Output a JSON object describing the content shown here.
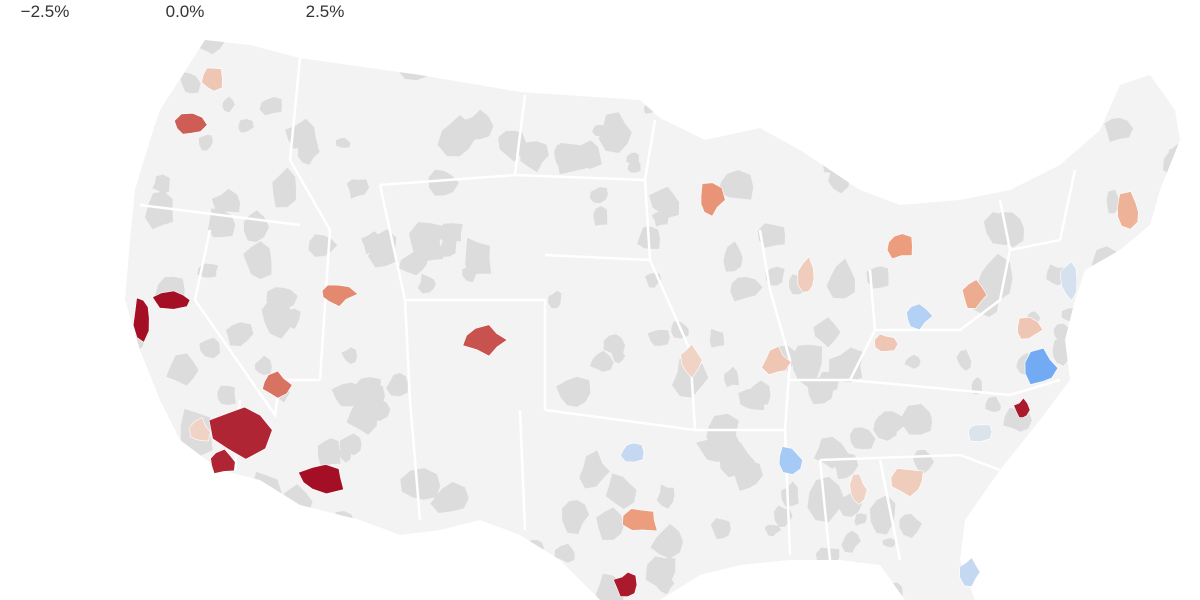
{
  "legend": {
    "ticks": [
      {
        "value": -2.5,
        "label": "−2.5%"
      },
      {
        "value": 0,
        "label": "0.0%"
      },
      {
        "value": 2.5,
        "label": "2.5%"
      }
    ],
    "colors": [
      "#2b7df0",
      "#aacdf6",
      "#f2eee8",
      "#ec9a7a",
      "#a50f25"
    ]
  },
  "metros": {
    "values": [
      0.6,
      1.8,
      2.5,
      2.5,
      2.3,
      2.3,
      1.6,
      2.5,
      1.4,
      1.9,
      1.3,
      0.5,
      1.2,
      1.0,
      0.6,
      0.6,
      0.4,
      1.2,
      2.4,
      -0.8,
      -1.3,
      0.5,
      0.4,
      -1.1,
      -1.8,
      2.4,
      -0.5,
      0.9,
      0.6,
      -0.4,
      -0.8,
      0.4
    ]
  }
}
